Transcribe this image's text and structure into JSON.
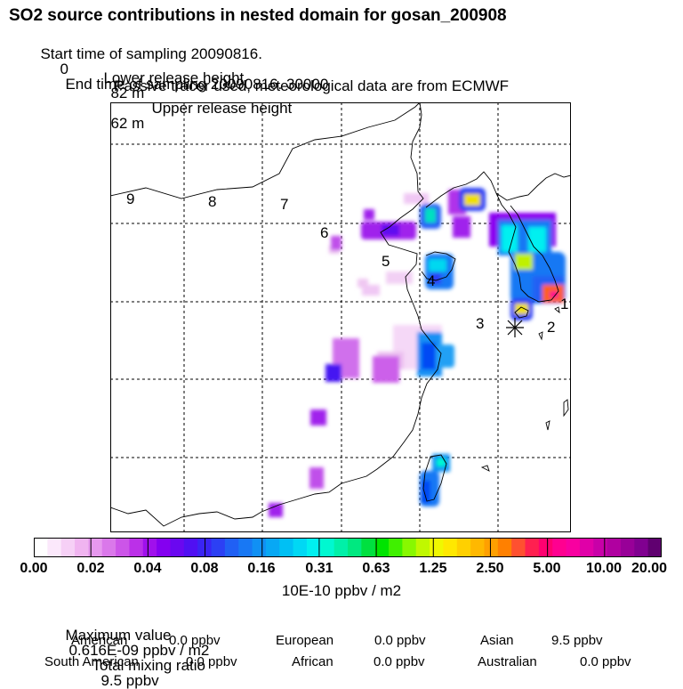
{
  "header": {
    "title": "SO2 source contributions in nested domain for gosan_200908",
    "start_label": "Start time of sampling 20090816.",
    "start_value": "0",
    "end_label": "End time of sampling 20090816. 30000",
    "lower_label": "Lower release height",
    "lower_value": "82 m",
    "upper_label": "Upper release height",
    "upper_value": "62 m",
    "tracer_note": "Passive tracer used, meteorological data are from ECMWF"
  },
  "chart_data": {
    "type": "heatmap",
    "title": "SO2 source contributions in nested domain for gosan_200908",
    "colorbar": {
      "ticks": [
        "0.00",
        "0.02",
        "0.04",
        "0.08",
        "0.16",
        "0.31",
        "0.63",
        "1.25",
        "2.50",
        "5.00",
        "10.00",
        "20.00"
      ],
      "unit": "10E-10 ppbv / m2",
      "colors": [
        "#ffffff",
        "#fbe8fb",
        "#f6d0f6",
        "#f0b4f0",
        "#e698ee",
        "#da78ea",
        "#cc55e8",
        "#bb30e8",
        "#a010ec",
        "#8400f0",
        "#6a08f0",
        "#5010f2",
        "#3a24f4",
        "#2c40f4",
        "#2060f4",
        "#1878f4",
        "#1090f4",
        "#08a8f4",
        "#00c0f4",
        "#00d8f4",
        "#00f0f0",
        "#00f8d0",
        "#00f0a8",
        "#00e880",
        "#00e040",
        "#00e400",
        "#40f000",
        "#88f800",
        "#c0f800",
        "#f0f800",
        "#ffe800",
        "#ffd000",
        "#ffb800",
        "#ffa000",
        "#ff8000",
        "#ff5030",
        "#ff2050",
        "#ff0070",
        "#ff0090",
        "#f800a0",
        "#e000a8",
        "#c800a8",
        "#b000a0",
        "#980098",
        "#800090",
        "#600070"
      ]
    },
    "region_labels": [
      "1",
      "2",
      "3",
      "4",
      "5",
      "6",
      "7",
      "8",
      "9"
    ],
    "receptor": "gosan"
  },
  "stats": {
    "max_label": "Maximum value",
    "max_value": "0.616E-09 ppbv / m2",
    "total_label": "Total mixing ratio",
    "total_value": "9.5 ppbv",
    "american_label": "American",
    "american_value": "0.0 ppbv",
    "european_label": "European",
    "european_value": "0.0 ppbv",
    "asian_label": "Asian",
    "asian_value": "9.5 ppbv",
    "south_american_label": "South American",
    "south_american_value": "0.0 ppbv",
    "african_label": "African",
    "african_value": "0.0 ppbv",
    "australian_label": "Australian",
    "australian_value": "0.0 ppbv"
  }
}
